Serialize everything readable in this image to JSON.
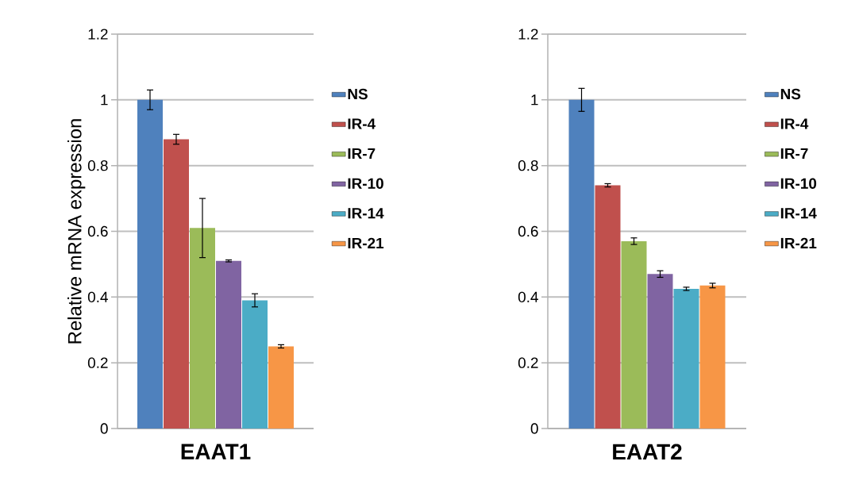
{
  "chart_data": [
    {
      "type": "bar",
      "ylabel": "Relative mRNA expression",
      "categories": [
        "EAAT1"
      ],
      "ylim": [
        0,
        1.2
      ],
      "yticks": [
        0,
        0.2,
        0.4,
        0.6,
        0.8,
        1,
        1.2
      ],
      "grid": "y",
      "legend": "right",
      "series": [
        {
          "name": "NS",
          "color": "#4f81bd",
          "values": [
            1.0
          ],
          "errors": [
            0.03
          ]
        },
        {
          "name": "IR-4",
          "color": "#c0504d",
          "values": [
            0.88
          ],
          "errors": [
            0.015
          ]
        },
        {
          "name": "IR-7",
          "color": "#9bbb59",
          "values": [
            0.61
          ],
          "errors": [
            0.09
          ]
        },
        {
          "name": "IR-10",
          "color": "#8064a2",
          "values": [
            0.51
          ],
          "errors": [
            0.003
          ]
        },
        {
          "name": "IR-14",
          "color": "#4bacc6",
          "values": [
            0.39
          ],
          "errors": [
            0.02
          ]
        },
        {
          "name": "IR-21",
          "color": "#f79646",
          "values": [
            0.25
          ],
          "errors": [
            0.005
          ]
        }
      ]
    },
    {
      "type": "bar",
      "categories": [
        "EAAT2"
      ],
      "ylim": [
        0,
        1.2
      ],
      "yticks": [
        0,
        0.2,
        0.4,
        0.6,
        0.8,
        1,
        1.2
      ],
      "grid": "y",
      "legend": "right",
      "series": [
        {
          "name": "NS",
          "color": "#4f81bd",
          "values": [
            1.0
          ],
          "errors": [
            0.035
          ]
        },
        {
          "name": "IR-4",
          "color": "#c0504d",
          "values": [
            0.74
          ],
          "errors": [
            0.005
          ]
        },
        {
          "name": "IR-7",
          "color": "#9bbb59",
          "values": [
            0.57
          ],
          "errors": [
            0.01
          ]
        },
        {
          "name": "IR-10",
          "color": "#8064a2",
          "values": [
            0.47
          ],
          "errors": [
            0.01
          ]
        },
        {
          "name": "IR-14",
          "color": "#4bacc6",
          "values": [
            0.425
          ],
          "errors": [
            0.005
          ]
        },
        {
          "name": "IR-21",
          "color": "#f79646",
          "values": [
            0.435
          ],
          "errors": [
            0.007
          ]
        }
      ]
    }
  ]
}
